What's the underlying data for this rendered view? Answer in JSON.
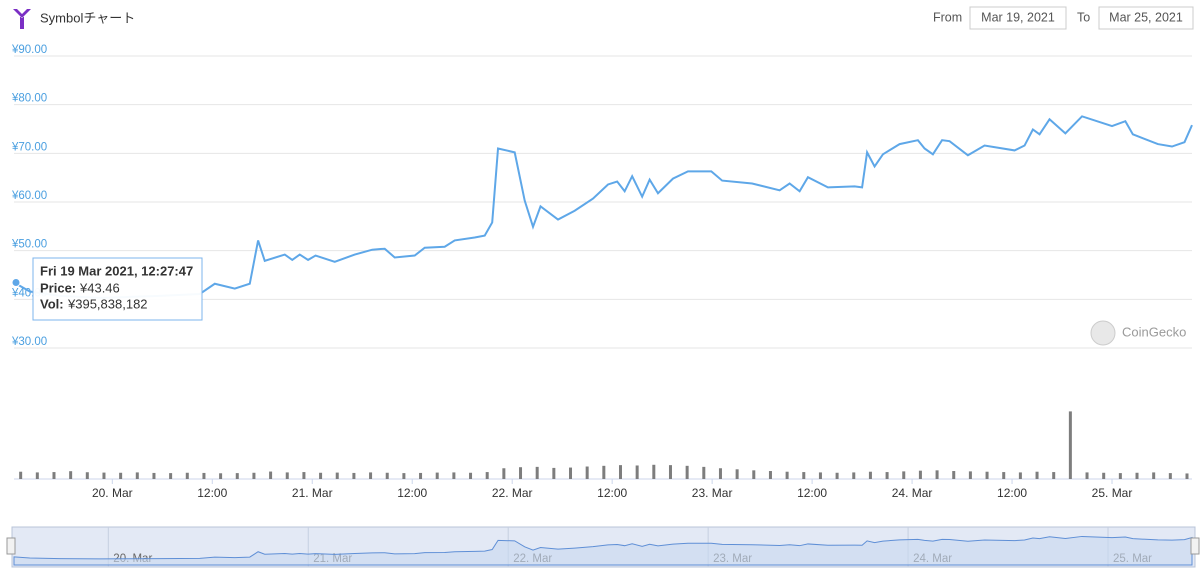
{
  "header": {
    "title": "Symbolチャート",
    "from_label": "From",
    "from_value": "Mar 19, 2021",
    "to_label": "To",
    "to_value": "Mar 25, 2021"
  },
  "watermark": "CoinGecko",
  "tooltip": {
    "title": "Fri 19 Mar 2021, 12:27:47",
    "rows": [
      {
        "name": "Price:",
        "value": "¥43.46"
      },
      {
        "name": "Vol:",
        "value": "¥395,838,182"
      }
    ]
  },
  "chart_data": {
    "type": "line",
    "xlim": [
      12.2,
      153.6
    ],
    "xticks": [
      {
        "value": 24,
        "label": "20. Mar"
      },
      {
        "value": 36,
        "label": "12:00"
      },
      {
        "value": 48,
        "label": "21. Mar"
      },
      {
        "value": 60,
        "label": "12:00"
      },
      {
        "value": 72,
        "label": "22. Mar"
      },
      {
        "value": 84,
        "label": "12:00"
      },
      {
        "value": 96,
        "label": "23. Mar"
      },
      {
        "value": 108,
        "label": "12:00"
      },
      {
        "value": 120,
        "label": "24. Mar"
      },
      {
        "value": 132,
        "label": "12:00"
      },
      {
        "value": 144,
        "label": "25. Mar"
      }
    ],
    "ylim": [
      30,
      90
    ],
    "yticks": [
      {
        "value": 30,
        "label": "¥30.00"
      },
      {
        "value": 40,
        "label": "¥40.00"
      },
      {
        "value": 50,
        "label": "¥50.00"
      },
      {
        "value": 60,
        "label": "¥60.00"
      },
      {
        "value": 70,
        "label": "¥70.00"
      },
      {
        "value": 80,
        "label": "¥80.00"
      },
      {
        "value": 90,
        "label": "¥90.00"
      }
    ],
    "y2lim": [
      0,
      6000000000
    ],
    "grid": true,
    "series": [
      {
        "color": "#5ea7e8",
        "x": [
          12.2,
          14.1,
          17.7,
          22.5,
          26.1,
          29.7,
          34.5,
          36.3,
          38.7,
          40.5,
          41.5,
          42.3,
          44.7,
          45.6,
          46.5,
          47.5,
          48.4,
          50.7,
          53.1,
          55.2,
          56.7,
          57.9,
          60.3,
          61.5,
          63.9,
          65.1,
          67.5,
          68.7,
          69.6,
          70.3,
          72.3,
          73.5,
          74.5,
          75.4,
          77.5,
          79.5,
          81.7,
          83.5,
          84.6,
          85.5,
          86.4,
          87.6,
          88.5,
          89.5,
          91.3,
          93.1,
          95.9,
          97.2,
          100.8,
          104.1,
          105.3,
          106.5,
          107.5,
          109.9,
          113.1,
          114.0,
          114.6,
          115.5,
          116.5,
          118.5,
          120.7,
          121.5,
          122.5,
          123.6,
          124.5,
          126.7,
          128.7,
          132.3,
          133.5,
          134.5,
          135.3,
          136.5,
          138.4,
          140.4,
          144.0,
          145.6,
          146.5,
          149.5,
          151.2,
          152.7,
          153.6
        ],
        "values": [
          43.46,
          41.6,
          40.7,
          40.3,
          40.5,
          40.7,
          41.1,
          43.2,
          42.2,
          43.2,
          52.1,
          47.9,
          49.2,
          48.1,
          49.2,
          48.1,
          49.0,
          47.7,
          49.2,
          50.2,
          50.4,
          48.6,
          49.0,
          50.6,
          50.8,
          52.1,
          52.7,
          53.1,
          55.8,
          71.0,
          70.2,
          60.3,
          54.9,
          59.1,
          56.4,
          58.2,
          60.7,
          63.6,
          64.2,
          62.2,
          65.3,
          61.1,
          64.6,
          61.8,
          64.8,
          66.3,
          66.3,
          64.4,
          63.8,
          62.4,
          63.8,
          62.2,
          65.1,
          63.0,
          63.2,
          63.0,
          70.2,
          67.3,
          69.8,
          71.9,
          72.7,
          71.0,
          69.8,
          72.7,
          72.5,
          69.6,
          71.6,
          70.6,
          71.6,
          74.9,
          73.9,
          77.0,
          74.1,
          77.6,
          75.6,
          76.6,
          73.9,
          71.9,
          71.4,
          72.3,
          75.8
        ]
      },
      {
        "type": "bar",
        "axis": "y2",
        "color": "#7d7d7d",
        "x": [
          13,
          15,
          17,
          19,
          21,
          23,
          25,
          27,
          29,
          31,
          33,
          35,
          37,
          39,
          41,
          43,
          45,
          47,
          49,
          51,
          53,
          55,
          57,
          59,
          61,
          63,
          65,
          67,
          69,
          71,
          73,
          75,
          77,
          79,
          81,
          83,
          85,
          87,
          89,
          91,
          93,
          95,
          97,
          99,
          101,
          103,
          105,
          107,
          109,
          111,
          113,
          115,
          117,
          119,
          121,
          123,
          125,
          127,
          129,
          131,
          133,
          135,
          137,
          139,
          141,
          143,
          145,
          147,
          149,
          151,
          153
        ],
        "values": [
          420000000,
          380000000,
          400000000,
          450000000,
          390000000,
          370000000,
          360000000,
          380000000,
          350000000,
          340000000,
          360000000,
          350000000,
          330000000,
          340000000,
          360000000,
          430000000,
          380000000,
          400000000,
          360000000,
          370000000,
          350000000,
          380000000,
          360000000,
          340000000,
          350000000,
          370000000,
          380000000,
          360000000,
          400000000,
          620000000,
          680000000,
          700000000,
          640000000,
          660000000,
          720000000,
          760000000,
          800000000,
          780000000,
          820000000,
          800000000,
          760000000,
          700000000,
          620000000,
          560000000,
          500000000,
          460000000,
          420000000,
          400000000,
          380000000,
          360000000,
          380000000,
          420000000,
          400000000,
          440000000,
          480000000,
          500000000,
          460000000,
          440000000,
          420000000,
          400000000,
          380000000,
          420000000,
          400000000,
          3900000000,
          380000000,
          360000000,
          340000000,
          360000000,
          380000000,
          340000000,
          320000000
        ]
      }
    ]
  }
}
